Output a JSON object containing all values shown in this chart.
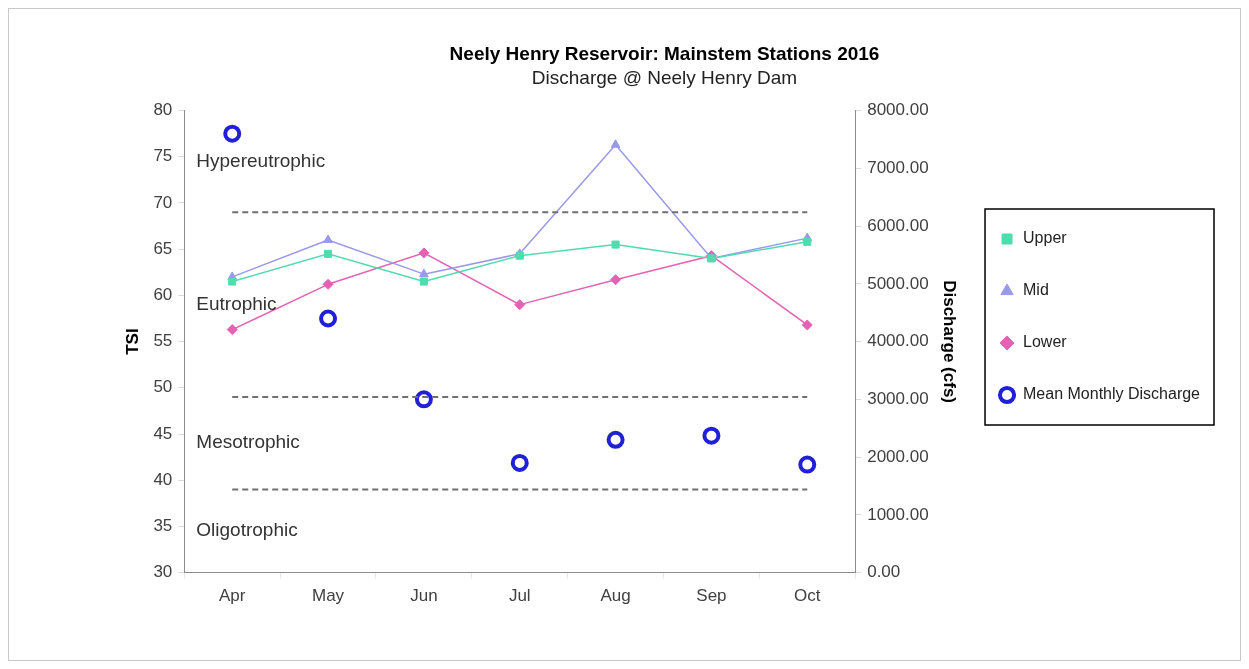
{
  "chart_data": {
    "type": "line",
    "title": "Neely Henry Reservoir: Mainstem Stations 2016",
    "subtitle": "Discharge @ Neely Henry Dam",
    "ylabel": "TSI",
    "y2label": "Discharge (cfs)",
    "categories": [
      "Apr",
      "May",
      "Jun",
      "Jul",
      "Aug",
      "Sep",
      "Oct"
    ],
    "series": [
      {
        "name": "Upper",
        "color": "#4fdcae",
        "marker": "square",
        "values": [
          61.5,
          64.5,
          61.5,
          64.3,
          65.5,
          64.0,
          65.8
        ]
      },
      {
        "name": "Mid",
        "color": "#9a9aea",
        "marker": "triangle",
        "values": [
          62.0,
          66.0,
          62.3,
          64.5,
          76.3,
          64.0,
          66.2
        ]
      },
      {
        "name": "Lower",
        "color": "#e462b4",
        "marker": "diamond",
        "values": [
          56.3,
          61.2,
          64.6,
          59.0,
          61.7,
          64.3,
          56.8
        ]
      },
      {
        "name": "Mean Monthly Discharge",
        "type": "scatter",
        "axis": "y2",
        "color": "#2020d8",
        "marker": "circle",
        "values": [
          7600,
          4400,
          3000,
          1900,
          2300,
          2370,
          1870
        ]
      }
    ],
    "ylim": [
      30,
      80
    ],
    "yticks": [
      30,
      35,
      40,
      45,
      50,
      55,
      60,
      65,
      70,
      75,
      80
    ],
    "y2lim": [
      0,
      8000
    ],
    "y2ticks": [
      {
        "value": 0,
        "label": "0.00"
      },
      {
        "value": 1000,
        "label": "1000.00"
      },
      {
        "value": 2000,
        "label": "2000.00"
      },
      {
        "value": 3000,
        "label": "3000.00"
      },
      {
        "value": 4000,
        "label": "4000.00"
      },
      {
        "value": 5000,
        "label": "5000.00"
      },
      {
        "value": 6000,
        "label": "6000.00"
      },
      {
        "value": 7000,
        "label": "7000.00"
      },
      {
        "value": 8000,
        "label": "8000.00"
      }
    ],
    "ref_lines": [
      {
        "axis": "y",
        "value": 69,
        "color": "#707070",
        "line_style": "dashed"
      },
      {
        "axis": "y",
        "value": 49,
        "color": "#707070",
        "line_style": "dashed"
      },
      {
        "axis": "y",
        "value": 39,
        "color": "#707070",
        "line_style": "dashed"
      }
    ],
    "annotations": [
      "Hypereutrophic",
      "Eutrophic",
      "Mesotrophic",
      "Oligotrophic"
    ],
    "grid": false,
    "legend": "right"
  }
}
